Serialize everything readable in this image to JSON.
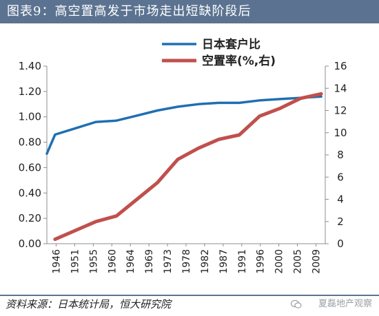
{
  "header": {
    "title": "图表9：高空置高发于市场走出短缺阶段后"
  },
  "footer": {
    "source": "资料来源：日本统计局，恒大研究院",
    "watermark": "夏磊地产观察"
  },
  "colors": {
    "title_bar": "#5b7391",
    "series_left": "#1f6fb2",
    "series_right": "#c0504d"
  },
  "chart_data": {
    "type": "line",
    "x_ticks": [
      "1946",
      "1951",
      "1955",
      "1960",
      "1964",
      "1969",
      "1973",
      "1978",
      "1982",
      "1987",
      "1991",
      "1996",
      "2000",
      "2005",
      "2009"
    ],
    "left_axis": {
      "ticks": [
        "0.00",
        "0.20",
        "0.40",
        "0.60",
        "0.80",
        "1.00",
        "1.20",
        "1.40"
      ],
      "range": [
        0,
        1.4
      ]
    },
    "right_axis": {
      "ticks": [
        "0",
        "2",
        "4",
        "6",
        "8",
        "10",
        "12",
        "14",
        "16"
      ],
      "range": [
        0,
        16
      ]
    },
    "x_range": [
      1946,
      2014
    ],
    "grid": false,
    "legend_position": "top-center",
    "series": [
      {
        "name": "日本套户比",
        "axis": "left",
        "x": [
          1946,
          1948,
          1953,
          1958,
          1963,
          1968,
          1973,
          1978,
          1983,
          1988,
          1993,
          1998,
          2003,
          2008,
          2013
        ],
        "values": [
          0.71,
          0.86,
          0.91,
          0.96,
          0.97,
          1.01,
          1.05,
          1.08,
          1.1,
          1.11,
          1.11,
          1.13,
          1.14,
          1.15,
          1.16
        ]
      },
      {
        "name": "空置率(%,右)",
        "axis": "right",
        "x": [
          1948,
          1958,
          1963,
          1968,
          1973,
          1978,
          1983,
          1988,
          1993,
          1998,
          2003,
          2008,
          2013
        ],
        "values": [
          0.4,
          2.0,
          2.5,
          4.0,
          5.5,
          7.6,
          8.6,
          9.4,
          9.8,
          11.5,
          12.2,
          13.1,
          13.5
        ]
      }
    ]
  }
}
